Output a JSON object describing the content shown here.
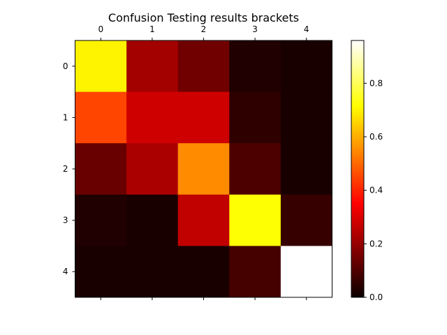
{
  "chart_data": {
    "type": "heatmap",
    "title": "Confusion Testing results brackets",
    "x_tick_labels": [
      "0",
      "1",
      "2",
      "3",
      "4"
    ],
    "y_tick_labels": [
      "0",
      "1",
      "2",
      "3",
      "4"
    ],
    "x_tick_position": "top",
    "colormap": "hot",
    "values": [
      [
        0.7,
        0.21,
        0.14,
        0.03,
        0.02
      ],
      [
        0.45,
        0.27,
        0.27,
        0.05,
        0.02
      ],
      [
        0.13,
        0.22,
        0.55,
        0.09,
        0.02
      ],
      [
        0.03,
        0.02,
        0.25,
        0.72,
        0.06
      ],
      [
        0.02,
        0.02,
        0.02,
        0.08,
        0.96
      ]
    ],
    "colorbar": {
      "vmin": 0.0,
      "vmax": 0.96,
      "ticks": [
        0.0,
        0.2,
        0.4,
        0.6,
        0.8
      ],
      "tick_labels": [
        "0.0",
        "0.2",
        "0.4",
        "0.6",
        "0.8"
      ]
    },
    "grid": false
  }
}
